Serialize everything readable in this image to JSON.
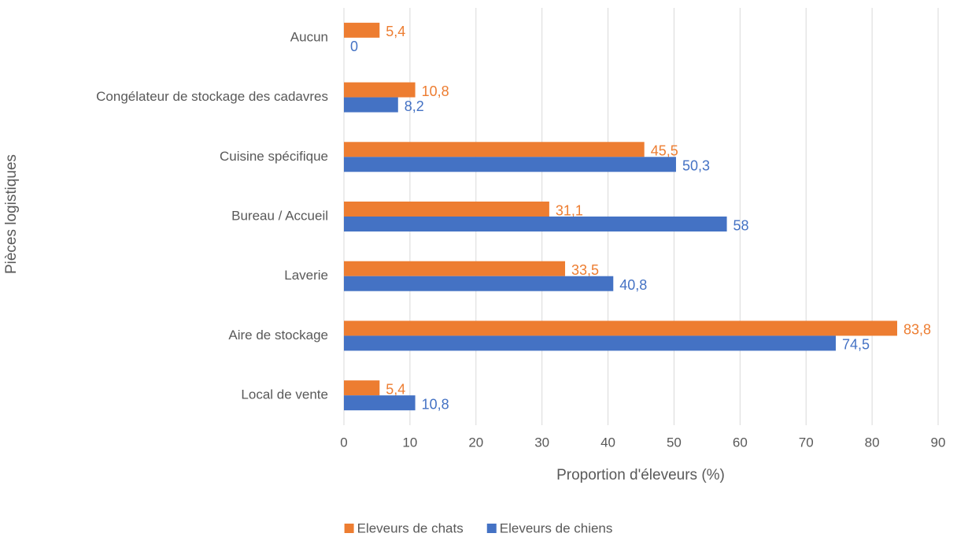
{
  "chart_data": {
    "type": "barh",
    "xlabel": "Proportion d'éleveurs (%)",
    "ylabel": "Pièces logistiques",
    "categories": [
      "Aucun",
      "Congélateur de stockage des cadavres",
      "Cuisine spécifique",
      "Bureau / Accueil",
      "Laverie",
      "Aire de stockage",
      "Local de vente"
    ],
    "series": [
      {
        "name": "Eleveurs de chats",
        "color": "#ed7d31",
        "values": [
          5.4,
          10.8,
          45.5,
          31.1,
          33.5,
          83.8,
          5.4
        ],
        "value_labels": [
          "5,4",
          "10,8",
          "45,5",
          "31,1",
          "33,5",
          "83,8",
          "5,4"
        ]
      },
      {
        "name": "Eleveurs de chiens",
        "color": "#4472c4",
        "values": [
          0,
          8.2,
          50.3,
          58,
          40.8,
          74.5,
          10.8
        ],
        "value_labels": [
          "0",
          "8,2",
          "50,3",
          "58",
          "40,8",
          "74,5",
          "10,8"
        ]
      }
    ],
    "xlim": [
      0,
      90
    ],
    "xticks": [
      0,
      10,
      20,
      30,
      40,
      50,
      60,
      70,
      80,
      90
    ],
    "grid": true,
    "legend": "bottom"
  }
}
